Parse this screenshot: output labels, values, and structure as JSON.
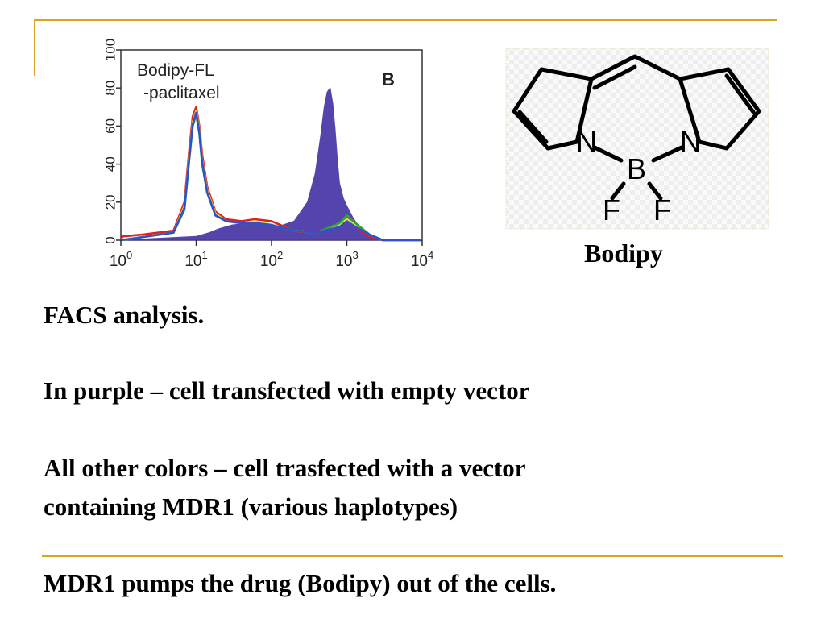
{
  "chart_data": {
    "type": "line",
    "panel_letter": "B",
    "annotation": [
      "Bodipy-FL",
      "-paclitaxel"
    ],
    "x_scale": "log",
    "xlim": [
      1,
      10000
    ],
    "ylim": [
      0,
      100
    ],
    "x_ticks": [
      {
        "base": "10",
        "exp": "0"
      },
      {
        "base": "10",
        "exp": "1"
      },
      {
        "base": "10",
        "exp": "2"
      },
      {
        "base": "10",
        "exp": "3"
      },
      {
        "base": "10",
        "exp": "4"
      }
    ],
    "y_ticks": [
      "0",
      "20",
      "40",
      "60",
      "80",
      "100"
    ],
    "y_tick_values": [
      0,
      20,
      40,
      60,
      80,
      100
    ],
    "series": [
      {
        "color": "#4b3aa8",
        "fill": true,
        "x": [
          1,
          10,
          15,
          20,
          30,
          50,
          80,
          120,
          200,
          300,
          380,
          450,
          500,
          550,
          600,
          650,
          700,
          750,
          800,
          900,
          1000,
          1200,
          1500,
          2000,
          3000,
          10000
        ],
        "y": [
          0,
          2,
          4,
          6,
          8,
          9,
          8,
          7,
          10,
          20,
          35,
          55,
          70,
          78,
          80,
          72,
          58,
          42,
          30,
          22,
          18,
          12,
          6,
          2,
          0,
          0
        ]
      },
      {
        "color": "#e02020",
        "fill": false,
        "x": [
          1,
          1.05,
          2,
          5,
          7,
          8,
          9,
          10,
          11,
          12,
          14,
          18,
          25,
          40,
          60,
          100,
          150,
          200,
          300,
          500,
          800,
          1000,
          1200,
          1500,
          2000,
          3000,
          10000
        ],
        "y": [
          0,
          2,
          3,
          5,
          20,
          45,
          65,
          70,
          60,
          45,
          28,
          15,
          11,
          10,
          11,
          10,
          7,
          5,
          4,
          5,
          8,
          10,
          8,
          5,
          2,
          0,
          0
        ]
      },
      {
        "color": "#f0e020",
        "fill": false,
        "x": [
          1,
          5,
          7,
          8,
          9,
          10,
          11,
          12,
          14,
          18,
          25,
          40,
          60,
          100,
          200,
          400,
          800,
          1000,
          1300,
          2000,
          3000,
          10000
        ],
        "y": [
          0,
          4,
          18,
          42,
          62,
          68,
          58,
          42,
          26,
          14,
          10,
          9,
          10,
          8,
          5,
          4,
          8,
          11,
          8,
          3,
          0,
          0
        ]
      },
      {
        "color": "#30a040",
        "fill": false,
        "x": [
          1,
          5,
          7,
          8,
          9,
          10,
          11,
          12,
          14,
          18,
          25,
          40,
          60,
          100,
          200,
          400,
          800,
          1000,
          1300,
          2000,
          3000,
          10000
        ],
        "y": [
          0,
          4,
          16,
          40,
          60,
          66,
          56,
          40,
          25,
          13,
          10,
          9,
          9,
          8,
          5,
          4,
          9,
          13,
          9,
          3,
          0,
          0
        ]
      },
      {
        "color": "#3050d0",
        "fill": false,
        "x": [
          1,
          5,
          7,
          8,
          9,
          10,
          11,
          12,
          14,
          18,
          25,
          40,
          60,
          100,
          200,
          400,
          800,
          1000,
          1300,
          2000,
          3000,
          10000
        ],
        "y": [
          0,
          4,
          17,
          41,
          61,
          67,
          57,
          41,
          25,
          13,
          10,
          9,
          9,
          8,
          5,
          4,
          7,
          10,
          7,
          3,
          0,
          0
        ]
      }
    ]
  },
  "structure": {
    "atoms": [
      "N",
      "N",
      "B",
      "F",
      "F"
    ],
    "caption": "Bodipy"
  },
  "text": {
    "line1": "FACS analysis.",
    "line2": "In purple – cell transfected with empty vector",
    "line3a": "All other colors – cell trasfected with a vector",
    "line3b": "containing MDR1 (various haplotypes)",
    "conclusion": "MDR1 pumps the drug (Bodipy) out of the cells."
  },
  "colors": {
    "rule": "#d8a320",
    "empty_vector": "#4b3aa8"
  }
}
